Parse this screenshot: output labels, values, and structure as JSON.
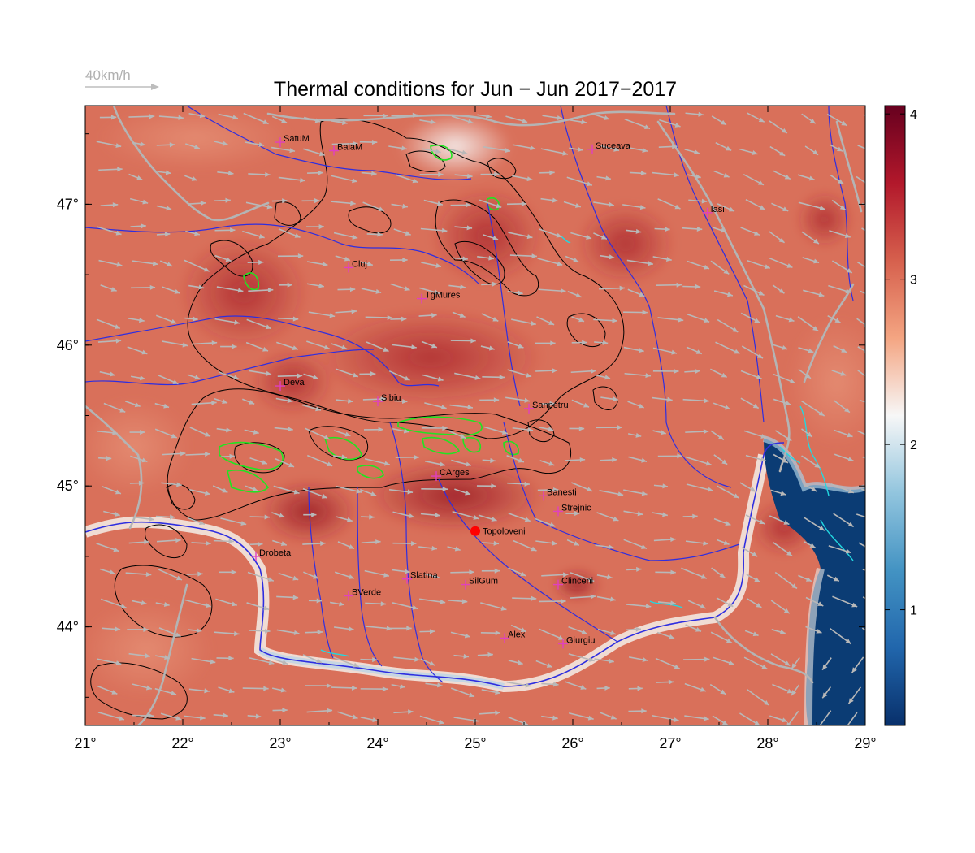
{
  "title": "Thermal conditions for Jun − Jun  2017−2017",
  "wind_scale": {
    "label": "40km/h"
  },
  "map": {
    "lon_range": [
      21,
      29
    ],
    "lat_range": [
      43.3,
      47.7
    ],
    "x_ticks": [
      {
        "value": 21,
        "label": "21°"
      },
      {
        "value": 22,
        "label": "22°"
      },
      {
        "value": 23,
        "label": "23°"
      },
      {
        "value": 24,
        "label": "24°"
      },
      {
        "value": 25,
        "label": "25°"
      },
      {
        "value": 26,
        "label": "26°"
      },
      {
        "value": 27,
        "label": "27°"
      },
      {
        "value": 28,
        "label": "28°"
      },
      {
        "value": 29,
        "label": "29°"
      }
    ],
    "y_ticks": [
      {
        "value": 44,
        "label": "44°"
      },
      {
        "value": 45,
        "label": "45°"
      },
      {
        "value": 46,
        "label": "46°"
      },
      {
        "value": 47,
        "label": "47°"
      }
    ],
    "colors": {
      "land": "#d9705a",
      "rivers": "#2e2ee0",
      "borders": "#b4b4b4",
      "contours": "#000000",
      "markers": "#e040c0",
      "highlight": "#ff0000",
      "sea": "#0b3c74"
    }
  },
  "colorbar": {
    "range": [
      0.3,
      4.05
    ],
    "ticks": [
      {
        "value": 1,
        "label": "1"
      },
      {
        "value": 2,
        "label": "2"
      },
      {
        "value": 3,
        "label": "3"
      },
      {
        "value": 4,
        "label": "4"
      }
    ],
    "stops": [
      "#08306b",
      "#2166ac",
      "#4393c3",
      "#92c5de",
      "#f7f7f7",
      "#f4a582",
      "#d6604d",
      "#b2182b",
      "#67001f"
    ]
  },
  "cities": [
    {
      "name": "SatuM",
      "lon": 23.0,
      "lat": 47.44
    },
    {
      "name": "BaiaM",
      "lon": 23.55,
      "lat": 47.38
    },
    {
      "name": "Suceava",
      "lon": 26.2,
      "lat": 47.39
    },
    {
      "name": "Iasi",
      "lon": 27.38,
      "lat": 46.94
    },
    {
      "name": "Cluj",
      "lon": 23.7,
      "lat": 46.55
    },
    {
      "name": "TgMures",
      "lon": 24.45,
      "lat": 46.33
    },
    {
      "name": "Deva",
      "lon": 23.0,
      "lat": 45.71
    },
    {
      "name": "Sibiu",
      "lon": 24.0,
      "lat": 45.6
    },
    {
      "name": "Sanpetru",
      "lon": 25.55,
      "lat": 45.55
    },
    {
      "name": "CArges",
      "lon": 24.6,
      "lat": 45.07
    },
    {
      "name": "Banesti",
      "lon": 25.7,
      "lat": 44.93
    },
    {
      "name": "Strejnic",
      "lon": 25.85,
      "lat": 44.82
    },
    {
      "name": "Topoloveni",
      "lon": 25.0,
      "lat": 44.68,
      "highlight": true
    },
    {
      "name": "Drobeta",
      "lon": 22.75,
      "lat": 44.5
    },
    {
      "name": "Slatina",
      "lon": 24.3,
      "lat": 44.34
    },
    {
      "name": "SilGum",
      "lon": 24.9,
      "lat": 44.3
    },
    {
      "name": "Clinceni",
      "lon": 25.85,
      "lat": 44.3
    },
    {
      "name": "BVerde",
      "lon": 23.7,
      "lat": 44.22
    },
    {
      "name": "Alex",
      "lon": 25.3,
      "lat": 43.92
    },
    {
      "name": "Giurgiu",
      "lon": 25.9,
      "lat": 43.88
    }
  ]
}
